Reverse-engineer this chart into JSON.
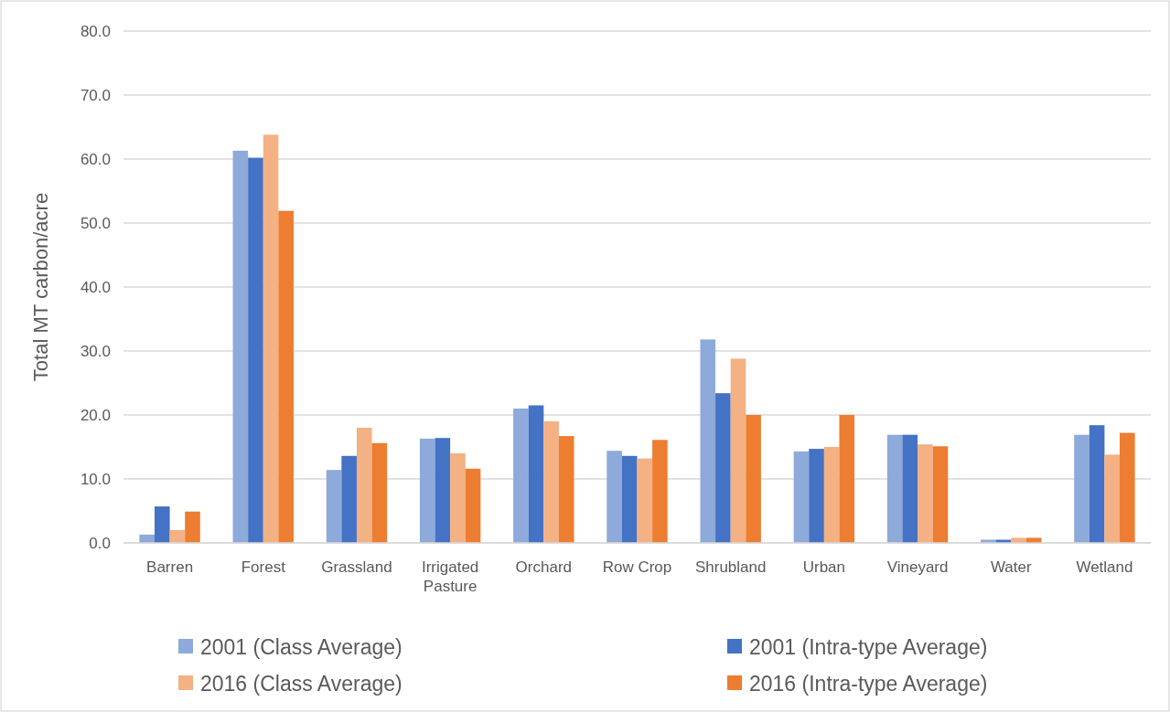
{
  "chart_data": {
    "type": "bar",
    "ylabel": "Total MT carbon/acre",
    "categories": [
      "Barren",
      "Forest",
      "Grassland",
      "Irrigated Pasture",
      "Orchard",
      "Row Crop",
      "Shrubland",
      "Urban",
      "Vineyard",
      "Water",
      "Wetland"
    ],
    "series": [
      {
        "name": "2001 (Class Average)",
        "color": "#8eaadb",
        "values": [
          1.3,
          61.3,
          11.4,
          16.3,
          21.0,
          14.4,
          31.8,
          14.3,
          16.9,
          0.5,
          16.9
        ]
      },
      {
        "name": "2001 (Intra-type Average)",
        "color": "#4472c4",
        "values": [
          5.7,
          60.2,
          13.6,
          16.4,
          21.5,
          13.6,
          23.4,
          14.7,
          16.9,
          0.5,
          18.4
        ]
      },
      {
        "name": "2016 (Class Average)",
        "color": "#f4b183",
        "values": [
          2.0,
          63.8,
          18.0,
          14.0,
          19.0,
          13.2,
          28.8,
          15.0,
          15.4,
          0.8,
          13.8
        ]
      },
      {
        "name": "2016 (Intra-type Average)",
        "color": "#ed7d31",
        "values": [
          4.9,
          51.9,
          15.6,
          11.6,
          16.7,
          16.1,
          20.0,
          20.0,
          15.1,
          0.8,
          17.2
        ]
      }
    ],
    "ylim": [
      0,
      80
    ],
    "yticks": [
      {
        "value": 0,
        "label": "0.0"
      },
      {
        "value": 10,
        "label": "10.0"
      },
      {
        "value": 20,
        "label": "20.0"
      },
      {
        "value": 30,
        "label": "30.0"
      },
      {
        "value": 40,
        "label": "40.0"
      },
      {
        "value": 50,
        "label": "50.0"
      },
      {
        "value": 60,
        "label": "60.0"
      },
      {
        "value": 70,
        "label": "70.0"
      },
      {
        "value": 80,
        "label": "80.0"
      }
    ],
    "grid": "y",
    "legend": "bottom"
  }
}
